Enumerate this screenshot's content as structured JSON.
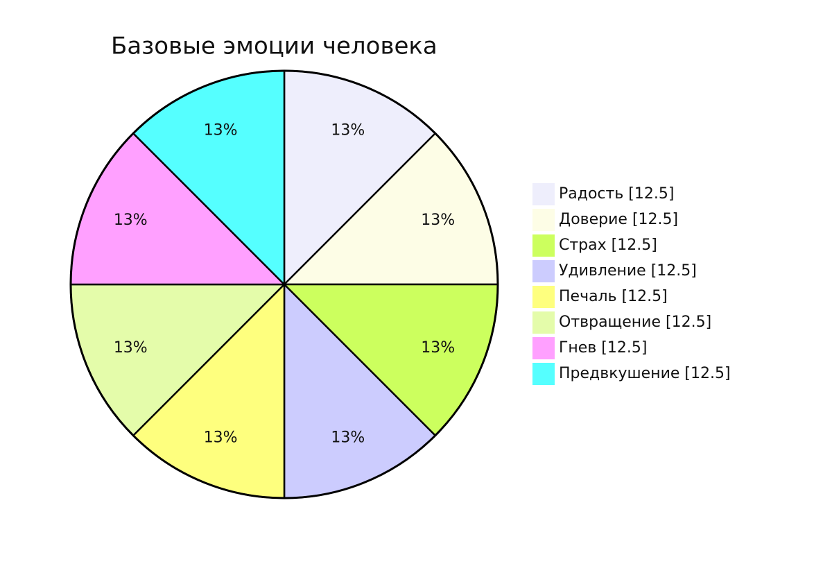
{
  "chart_data": {
    "type": "pie",
    "title": "Базовые эмоции человека",
    "categories": [
      "Радость [12.5]",
      "Доверие [12.5]",
      "Страх [12.5]",
      "Удивление [12.5]",
      "Печаль [12.5]",
      "Отвращение [12.5]",
      "Гнев [12.5]",
      "Предвкушение [12.5]"
    ],
    "values": [
      12.5,
      12.5,
      12.5,
      12.5,
      12.5,
      12.5,
      12.5,
      12.5
    ],
    "value_labels": [
      "13%",
      "13%",
      "13%",
      "13%",
      "13%",
      "13%",
      "13%",
      "13%"
    ],
    "colors": [
      "#eeeefc",
      "#fdfde6",
      "#ccff5e",
      "#ccccfe",
      "#feff7e",
      "#e4fcaa",
      "#ffa0ff",
      "#55ffff"
    ],
    "legend": "right"
  }
}
